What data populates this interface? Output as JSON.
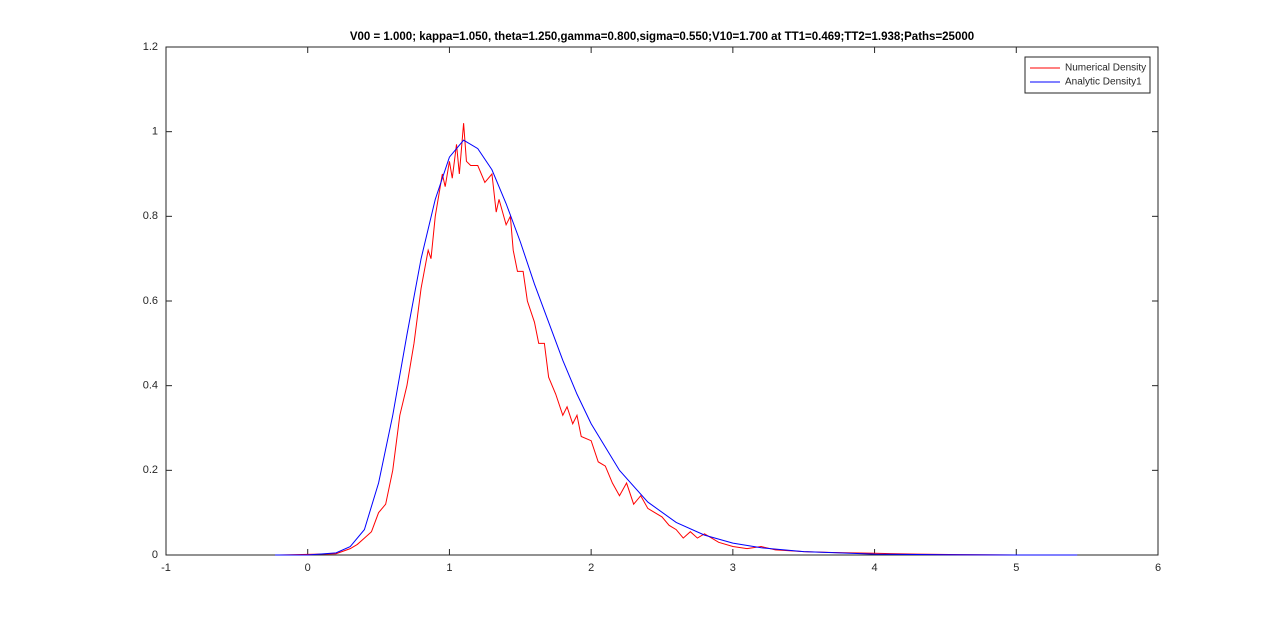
{
  "chart_data": {
    "type": "line",
    "title": "V00 = 1.000; kappa=1.050, theta=1.250,gamma=0.800,sigma=0.550;V10=1.700 at TT1=0.469;TT2=1.938;Paths=25000",
    "xlim": [
      -1,
      6
    ],
    "xticks": [
      -1,
      0,
      1,
      2,
      3,
      4,
      5,
      6
    ],
    "ylim": [
      0,
      1.2
    ],
    "yticks": [
      0,
      0.2,
      0.4,
      0.6,
      0.8,
      1,
      1.2
    ],
    "grid": false,
    "legend": "northeast",
    "series": [
      {
        "name": "Numerical Density",
        "color": "#ff0000",
        "x": [
          -0.2,
          0.2,
          0.3,
          0.35,
          0.4,
          0.45,
          0.5,
          0.55,
          0.6,
          0.65,
          0.7,
          0.75,
          0.8,
          0.85,
          0.87,
          0.9,
          0.95,
          0.97,
          1.0,
          1.02,
          1.05,
          1.07,
          1.1,
          1.12,
          1.15,
          1.2,
          1.25,
          1.3,
          1.33,
          1.35,
          1.4,
          1.43,
          1.45,
          1.48,
          1.52,
          1.55,
          1.6,
          1.63,
          1.67,
          1.7,
          1.75,
          1.8,
          1.83,
          1.87,
          1.9,
          1.93,
          2.0,
          2.05,
          2.1,
          2.15,
          2.2,
          2.25,
          2.3,
          2.35,
          2.4,
          2.45,
          2.5,
          2.55,
          2.6,
          2.65,
          2.7,
          2.75,
          2.8,
          2.9,
          3.0,
          3.1,
          3.2,
          3.3,
          3.5,
          3.7,
          4.0,
          4.3,
          4.6,
          5.0,
          5.2
        ],
        "values": [
          0,
          0.003,
          0.015,
          0.025,
          0.04,
          0.055,
          0.1,
          0.12,
          0.2,
          0.33,
          0.4,
          0.5,
          0.63,
          0.72,
          0.7,
          0.8,
          0.9,
          0.87,
          0.93,
          0.89,
          0.97,
          0.9,
          1.02,
          0.93,
          0.92,
          0.92,
          0.88,
          0.9,
          0.81,
          0.84,
          0.78,
          0.8,
          0.72,
          0.67,
          0.67,
          0.6,
          0.55,
          0.5,
          0.5,
          0.42,
          0.38,
          0.33,
          0.35,
          0.31,
          0.33,
          0.28,
          0.27,
          0.22,
          0.21,
          0.17,
          0.14,
          0.17,
          0.12,
          0.14,
          0.11,
          0.1,
          0.09,
          0.07,
          0.06,
          0.04,
          0.055,
          0.04,
          0.05,
          0.03,
          0.02,
          0.015,
          0.02,
          0.012,
          0.008,
          0.006,
          0.004,
          0.002,
          0.001,
          0,
          0
        ]
      },
      {
        "name": "Analytic Density1",
        "color": "#0000ff",
        "x": [
          -0.23,
          0,
          0.2,
          0.3,
          0.4,
          0.5,
          0.6,
          0.7,
          0.8,
          0.9,
          1.0,
          1.1,
          1.2,
          1.3,
          1.4,
          1.5,
          1.6,
          1.7,
          1.8,
          1.9,
          2.0,
          2.2,
          2.4,
          2.6,
          2.8,
          3.0,
          3.2,
          3.5,
          4.0,
          4.5,
          5.0,
          5.43
        ],
        "values": [
          0,
          0,
          0.005,
          0.02,
          0.06,
          0.17,
          0.33,
          0.52,
          0.7,
          0.84,
          0.94,
          0.98,
          0.96,
          0.91,
          0.83,
          0.74,
          0.64,
          0.55,
          0.46,
          0.38,
          0.31,
          0.2,
          0.125,
          0.077,
          0.047,
          0.028,
          0.017,
          0.008,
          0.002,
          0.0005,
          0,
          0
        ]
      }
    ]
  }
}
